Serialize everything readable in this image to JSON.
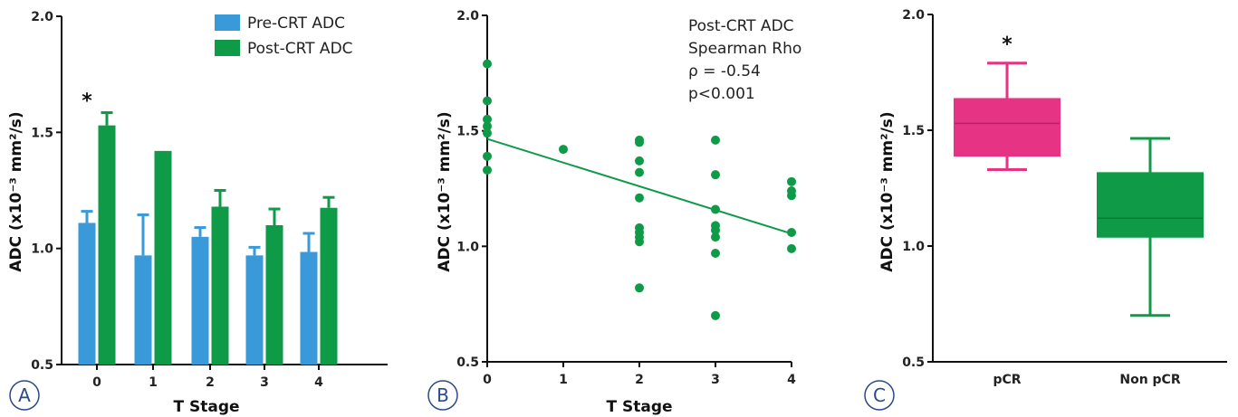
{
  "colors": {
    "pre": "#3a9ad9",
    "post": "#0f9a48",
    "pcr": "#e63384",
    "axis": "#111111",
    "panel_ring": "#2a4a8a"
  },
  "panel_labels": [
    "A",
    "B",
    "C"
  ],
  "chart_data": [
    {
      "type": "bar",
      "panel": "A",
      "xlabel": "T Stage",
      "ylabel": "ADC (x10⁻³ mm²/s)",
      "ylim": [
        0.5,
        2.0
      ],
      "yticks": [
        "0.5",
        "1.0",
        "1.5",
        "2.0"
      ],
      "categories": [
        "0",
        "1",
        "2",
        "3",
        "4"
      ],
      "series": [
        {
          "name": "Pre-CRT ADC",
          "values": [
            1.11,
            0.97,
            1.05,
            0.97,
            0.985
          ],
          "err": [
            0.05,
            0.175,
            0.04,
            0.035,
            0.08
          ]
        },
        {
          "name": "Post-CRT ADC",
          "values": [
            1.53,
            1.42,
            1.18,
            1.1,
            1.175
          ],
          "err": [
            0.055,
            0,
            0.07,
            0.07,
            0.045
          ]
        }
      ],
      "annotation": {
        "text": "*",
        "category": "0"
      },
      "legend": "top-right"
    },
    {
      "type": "scatter",
      "panel": "B",
      "xlabel": "T Stage",
      "ylabel": "ADC (x10⁻³ mm²/s)",
      "ylim": [
        0.5,
        2.0
      ],
      "xlim": [
        0,
        4
      ],
      "yticks": [
        "0.5",
        "1.0",
        "1.5",
        "2.0"
      ],
      "xticks": [
        "0",
        "1",
        "2",
        "3",
        "4"
      ],
      "points": [
        [
          0,
          1.79
        ],
        [
          0,
          1.63
        ],
        [
          0,
          1.55
        ],
        [
          0,
          1.52
        ],
        [
          0,
          1.49
        ],
        [
          0,
          1.39
        ],
        [
          0,
          1.33
        ],
        [
          1,
          1.42
        ],
        [
          2,
          1.46
        ],
        [
          2,
          1.45
        ],
        [
          2,
          1.37
        ],
        [
          2,
          1.32
        ],
        [
          2,
          1.21
        ],
        [
          2,
          1.08
        ],
        [
          2,
          1.06
        ],
        [
          2,
          1.04
        ],
        [
          2,
          1.02
        ],
        [
          2,
          0.82
        ],
        [
          3,
          1.46
        ],
        [
          3,
          1.31
        ],
        [
          3,
          1.16
        ],
        [
          3,
          1.09
        ],
        [
          3,
          1.07
        ],
        [
          3,
          1.04
        ],
        [
          3,
          0.97
        ],
        [
          3,
          0.7
        ],
        [
          4,
          1.28
        ],
        [
          4,
          1.24
        ],
        [
          4,
          1.22
        ],
        [
          4,
          1.06
        ],
        [
          4,
          0.99
        ]
      ],
      "fit_line": {
        "x": [
          0,
          4
        ],
        "y": [
          1.465,
          1.055
        ]
      },
      "annotations": [
        "Post-CRT ADC",
        "Spearman Rho",
        "ρ = -0.54",
        "p<0.001"
      ]
    },
    {
      "type": "box",
      "panel": "C",
      "ylabel": "ADC (x10⁻³ mm²/s)",
      "ylim": [
        0.5,
        2.0
      ],
      "yticks": [
        "0.5",
        "1.0",
        "1.5",
        "2.0"
      ],
      "categories": [
        "pCR",
        "Non pCR"
      ],
      "boxes": [
        {
          "min": 1.33,
          "q1": 1.39,
          "median": 1.53,
          "q3": 1.635,
          "max": 1.79
        },
        {
          "min": 0.7,
          "q1": 1.04,
          "median": 1.12,
          "q3": 1.315,
          "max": 1.465
        }
      ],
      "annotation": {
        "text": "*",
        "category": "pCR"
      }
    }
  ]
}
